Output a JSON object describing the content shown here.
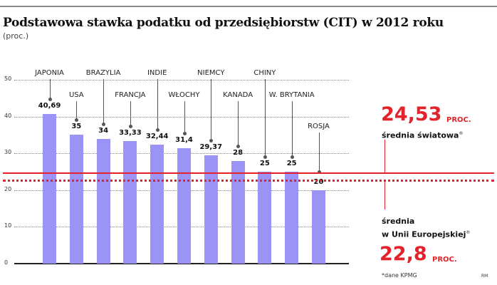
{
  "header": {
    "title": "Podstawowa stawka podatku od przedsiębiorstw (CIT) w 2012 roku",
    "subtitle": "(proc.)"
  },
  "axis": {
    "ticks": [
      "0",
      "10",
      "20",
      "30",
      "40",
      "50"
    ]
  },
  "bars": [
    {
      "name": "JAPONIA",
      "value_label": "40,69"
    },
    {
      "name": "USA",
      "value_label": "35"
    },
    {
      "name": "BRAZYLIA",
      "value_label": "34"
    },
    {
      "name": "FRANCJA",
      "value_label": "33,33"
    },
    {
      "name": "INDIE",
      "value_label": "32,44"
    },
    {
      "name": "WŁOCHY",
      "value_label": "31,4"
    },
    {
      "name": "NIEMCY",
      "value_label": "29,37"
    },
    {
      "name": "KANADA",
      "value_label": "28"
    },
    {
      "name": "CHINY",
      "value_label": "25"
    },
    {
      "name": "W. BRYTANIA",
      "value_label": "25"
    },
    {
      "name": "ROSJA",
      "value_label": "20"
    }
  ],
  "world_avg": {
    "value": "24,53",
    "unit": "PROC.",
    "label": "średnia światowa",
    "mark": "®"
  },
  "eu_avg": {
    "value": "22,8",
    "unit": "PROC.",
    "label_line1": "średnia",
    "label_line2": "w Unii Europejskiej",
    "mark": "®"
  },
  "footnote": "*dane KPMG",
  "credit": "RM",
  "colors": {
    "bar": "#9b93f5",
    "accent": "#e3222b"
  },
  "chart_data": {
    "type": "bar",
    "title": "Podstawowa stawka podatku od przedsiębiorstw (CIT) w 2012 roku",
    "subtitle": "(proc.)",
    "categories": [
      "JAPONIA",
      "USA",
      "BRAZYLIA",
      "FRANCJA",
      "INDIE",
      "WŁOCHY",
      "NIEMCY",
      "KANADA",
      "CHINY",
      "W. BRYTANIA",
      "ROSJA"
    ],
    "values": [
      40.69,
      35,
      34,
      33.33,
      32.44,
      31.4,
      29.37,
      28,
      25,
      25,
      20
    ],
    "xlabel": "",
    "ylabel": "proc.",
    "ylim": [
      0,
      50
    ],
    "yticks": [
      0,
      10,
      20,
      30,
      40,
      50
    ],
    "grid": true,
    "reference_lines": [
      {
        "name": "średnia światowa",
        "value": 24.53,
        "style": "solid",
        "color": "#e3222b"
      },
      {
        "name": "średnia w Unii Europejskiej",
        "value": 22.8,
        "style": "dotted",
        "color": "#e3222b"
      }
    ],
    "annotations": [
      "*dane KPMG",
      "RM"
    ]
  }
}
